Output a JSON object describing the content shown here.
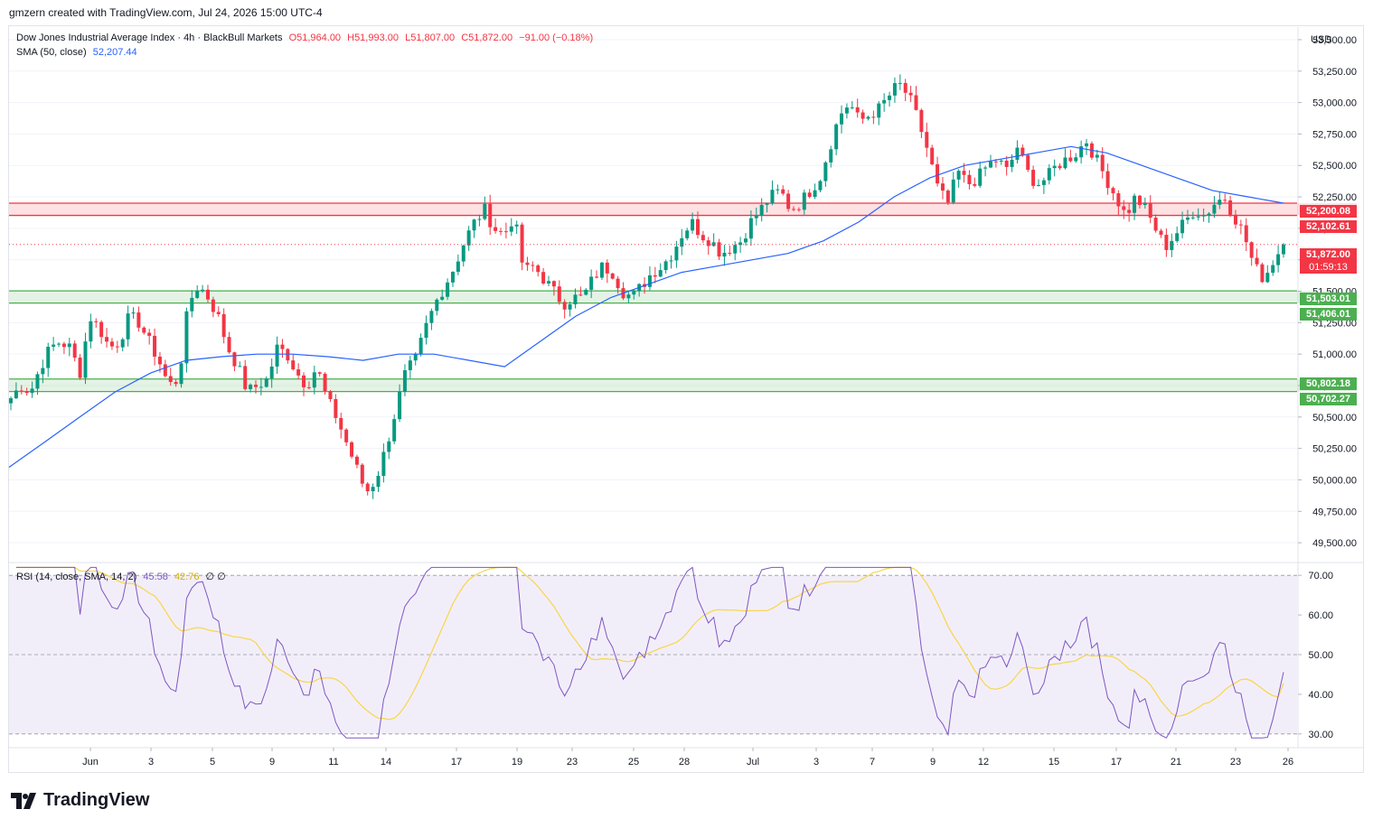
{
  "header": {
    "attribution": "gmzern created with TradingView.com, Jul 24, 2026 15:00 UTC-4"
  },
  "legend": {
    "symbol": "Dow Jones Industrial Average Index · 4h · BlackBull Markets",
    "open": "O51,964.00",
    "high": "H51,993.00",
    "low": "L51,807.00",
    "close": "C51,872.00",
    "change": "−91.00 (−0.18%)",
    "sma_label": "SMA (50, close)",
    "sma_value": "52,207.44",
    "rsi_label": "RSI (14, close, SMA, 14, 2)",
    "rsi_value": "45.58",
    "rsi_sma_value": "42.76",
    "rsi_extra": "∅ ∅"
  },
  "currency": "USD",
  "price_tags": {
    "resistance_top": "52,200.08",
    "resistance_bottom": "52,102.61",
    "last_price": "51,872.00",
    "countdown": "01:59:13",
    "support1_top": "51,503.01",
    "support1_bottom": "51,406.01",
    "support2_top": "50,802.18",
    "support2_bottom": "50,702.27"
  },
  "colors": {
    "up": "#089981",
    "down": "#f23645",
    "sma": "#2962ff",
    "rsi": "#7e57c2",
    "rsi_sma": "#f7d64a",
    "resistance_zone": "#f23645",
    "support_zone": "#4caf50"
  },
  "brand": "TradingView",
  "chart_data": {
    "type": "candlestick",
    "timeframe": "4h",
    "price_axis": {
      "ylim": [
        49350,
        53500
      ],
      "ticks": [
        "53,500.00",
        "53,250.00",
        "53,000.00",
        "52,750.00",
        "52,500.00",
        "52,250.00",
        "52,000.00",
        "51,750.00",
        "51,500.00",
        "51,250.00",
        "51,000.00",
        "50,750.00",
        "50,500.00",
        "50,250.00",
        "50,000.00",
        "49,750.00",
        "49,500.00"
      ]
    },
    "x_ticks": [
      "Jun",
      "3",
      "5",
      "9",
      "11",
      "14",
      "17",
      "19",
      "23",
      "25",
      "28",
      "Jul",
      "3",
      "7",
      "9",
      "12",
      "15",
      "17",
      "21",
      "23",
      "26"
    ],
    "zones": [
      {
        "name": "resistance",
        "top": 52200.08,
        "bottom": 52102.61
      },
      {
        "name": "support",
        "top": 51503.01,
        "bottom": 51406.01
      },
      {
        "name": "support",
        "top": 50802.18,
        "bottom": 50702.27
      }
    ],
    "last_close": 51872.0,
    "close_path": [
      50650,
      50750,
      50700,
      50900,
      51050,
      51100,
      51050,
      50850,
      51300,
      51200,
      51050,
      51100,
      51300,
      51250,
      51100,
      50950,
      50750,
      50800,
      51400,
      51550,
      51450,
      51300,
      51050,
      50900,
      50700,
      50750,
      50800,
      51050,
      51000,
      50850,
      50750,
      50900,
      50650,
      50500,
      50300,
      50100,
      49900,
      50000,
      50250,
      50550,
      50850,
      50950,
      51200,
      51400,
      51550,
      51700,
      51900,
      52050,
      52150,
      52000,
      51950,
      52100,
      51650,
      51700,
      51600,
      51500,
      51400,
      51450,
      51450,
      51600,
      51700,
      51650,
      51500,
      51450,
      51550,
      51650,
      51700,
      51800,
      51950,
      52050,
      51950,
      51900,
      51800,
      51850,
      51900,
      52050,
      52150,
      52250,
      52300,
      52150,
      52200,
      52300,
      52400,
      52650,
      52900,
      53000,
      52850,
      52900,
      52950,
      53050,
      53150,
      53050,
      52850,
      52600,
      52300,
      52200,
      52450,
      52350,
      52400,
      52500,
      52550,
      52450,
      52650,
      52450,
      52350,
      52400,
      52500,
      52550,
      52600,
      52700,
      52550,
      52400,
      52250,
      52100,
      52250,
      52150,
      52000,
      51850,
      51950,
      52050,
      52150,
      52100,
      52200,
      52250,
      52100,
      51950,
      51700,
      51600,
      51750,
      51872
    ],
    "sma_path": [
      50100,
      50300,
      50500,
      50700,
      50850,
      50950,
      50980,
      51000,
      51000,
      50980,
      50950,
      51000,
      51000,
      50950,
      50900,
      51100,
      51300,
      51450,
      51550,
      51650,
      51700,
      51750,
      51800,
      51900,
      52050,
      52250,
      52400,
      52500,
      52550,
      52600,
      52650,
      52600,
      52500,
      52400,
      52300,
      52250,
      52200
    ],
    "rsi": {
      "ylim": [
        27,
        73
      ],
      "ticks": [
        "70.00",
        "60.00",
        "50.00",
        "40.00",
        "30.00"
      ],
      "upper": 70,
      "middle": 50,
      "lower": 30,
      "last": 45.58,
      "sma_last": 42.76
    }
  }
}
